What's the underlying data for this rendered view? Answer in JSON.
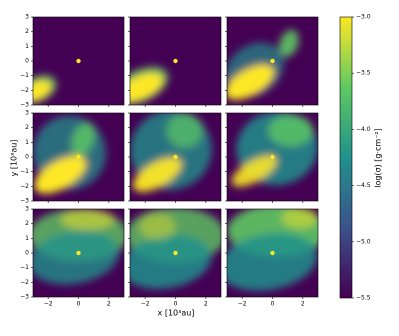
{
  "chart_data": {
    "type": "image-grid",
    "xlabel": "x [10³au]",
    "ylabel": "y [10³au]",
    "xlim": [
      -3,
      3
    ],
    "ylim": [
      -3,
      3
    ],
    "xticks": [
      {
        "value": -2,
        "label": "−2"
      },
      0,
      2
    ],
    "yticks": [
      {
        "value": -3,
        "label": "−3"
      },
      {
        "value": -2,
        "label": "−2"
      },
      {
        "value": -1,
        "label": "−1"
      },
      0,
      1,
      2,
      3
    ],
    "colorbar": {
      "label": "log(σ) [g·cm⁻²]",
      "lim": [
        -5.5,
        -3.0
      ],
      "ticks": [
        {
          "value": -3.0,
          "label": "−3.0"
        },
        {
          "value": -3.5,
          "label": "−3.5"
        },
        {
          "value": -4.0,
          "label": "−4.0"
        },
        {
          "value": -4.5,
          "label": "−4.5"
        },
        {
          "value": -5.0,
          "label": "−5.0"
        },
        {
          "value": -5.5,
          "label": "−5.5"
        }
      ],
      "colormap": [
        "#440154",
        "#3b528b",
        "#21918c",
        "#5ec962",
        "#fde725"
      ]
    }
  }
}
